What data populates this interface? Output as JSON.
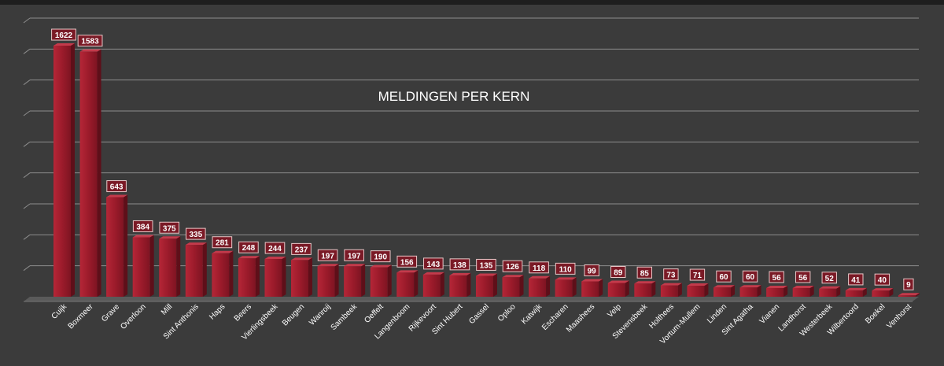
{
  "chart_data": {
    "type": "bar",
    "title": "MELDINGEN PER KERN",
    "xlabel": "",
    "ylabel": "",
    "ylim": [
      0,
      1800
    ],
    "grid": true,
    "legend": "none",
    "bar_color": "#a01e2e",
    "categories": [
      "Cuijk",
      "Boxmeer",
      "Grave",
      "Overloon",
      "Mill",
      "Sint Anthonis",
      "Haps",
      "Beers",
      "Vierlingsbeek",
      "Beugen",
      "Wanroij",
      "Sambeek",
      "Oeffelt",
      "Langenboom",
      "Rijkevoort",
      "Sint Hubert",
      "Gassel",
      "Oploo",
      "Katwijk",
      "Escharen",
      "Maashees",
      "Velp",
      "Stevensbeek",
      "Holthees",
      "Vortum-Mullem",
      "Linden",
      "Sint Agatha",
      "Vianen",
      "Landhorst",
      "Westerbeek",
      "Wilbertoord",
      "Boekel",
      "Venhorst"
    ],
    "values": [
      1622,
      1583,
      643,
      384,
      375,
      335,
      281,
      248,
      244,
      237,
      197,
      197,
      190,
      156,
      143,
      138,
      135,
      126,
      118,
      110,
      99,
      89,
      85,
      73,
      71,
      60,
      60,
      56,
      56,
      52,
      41,
      40,
      9
    ]
  }
}
